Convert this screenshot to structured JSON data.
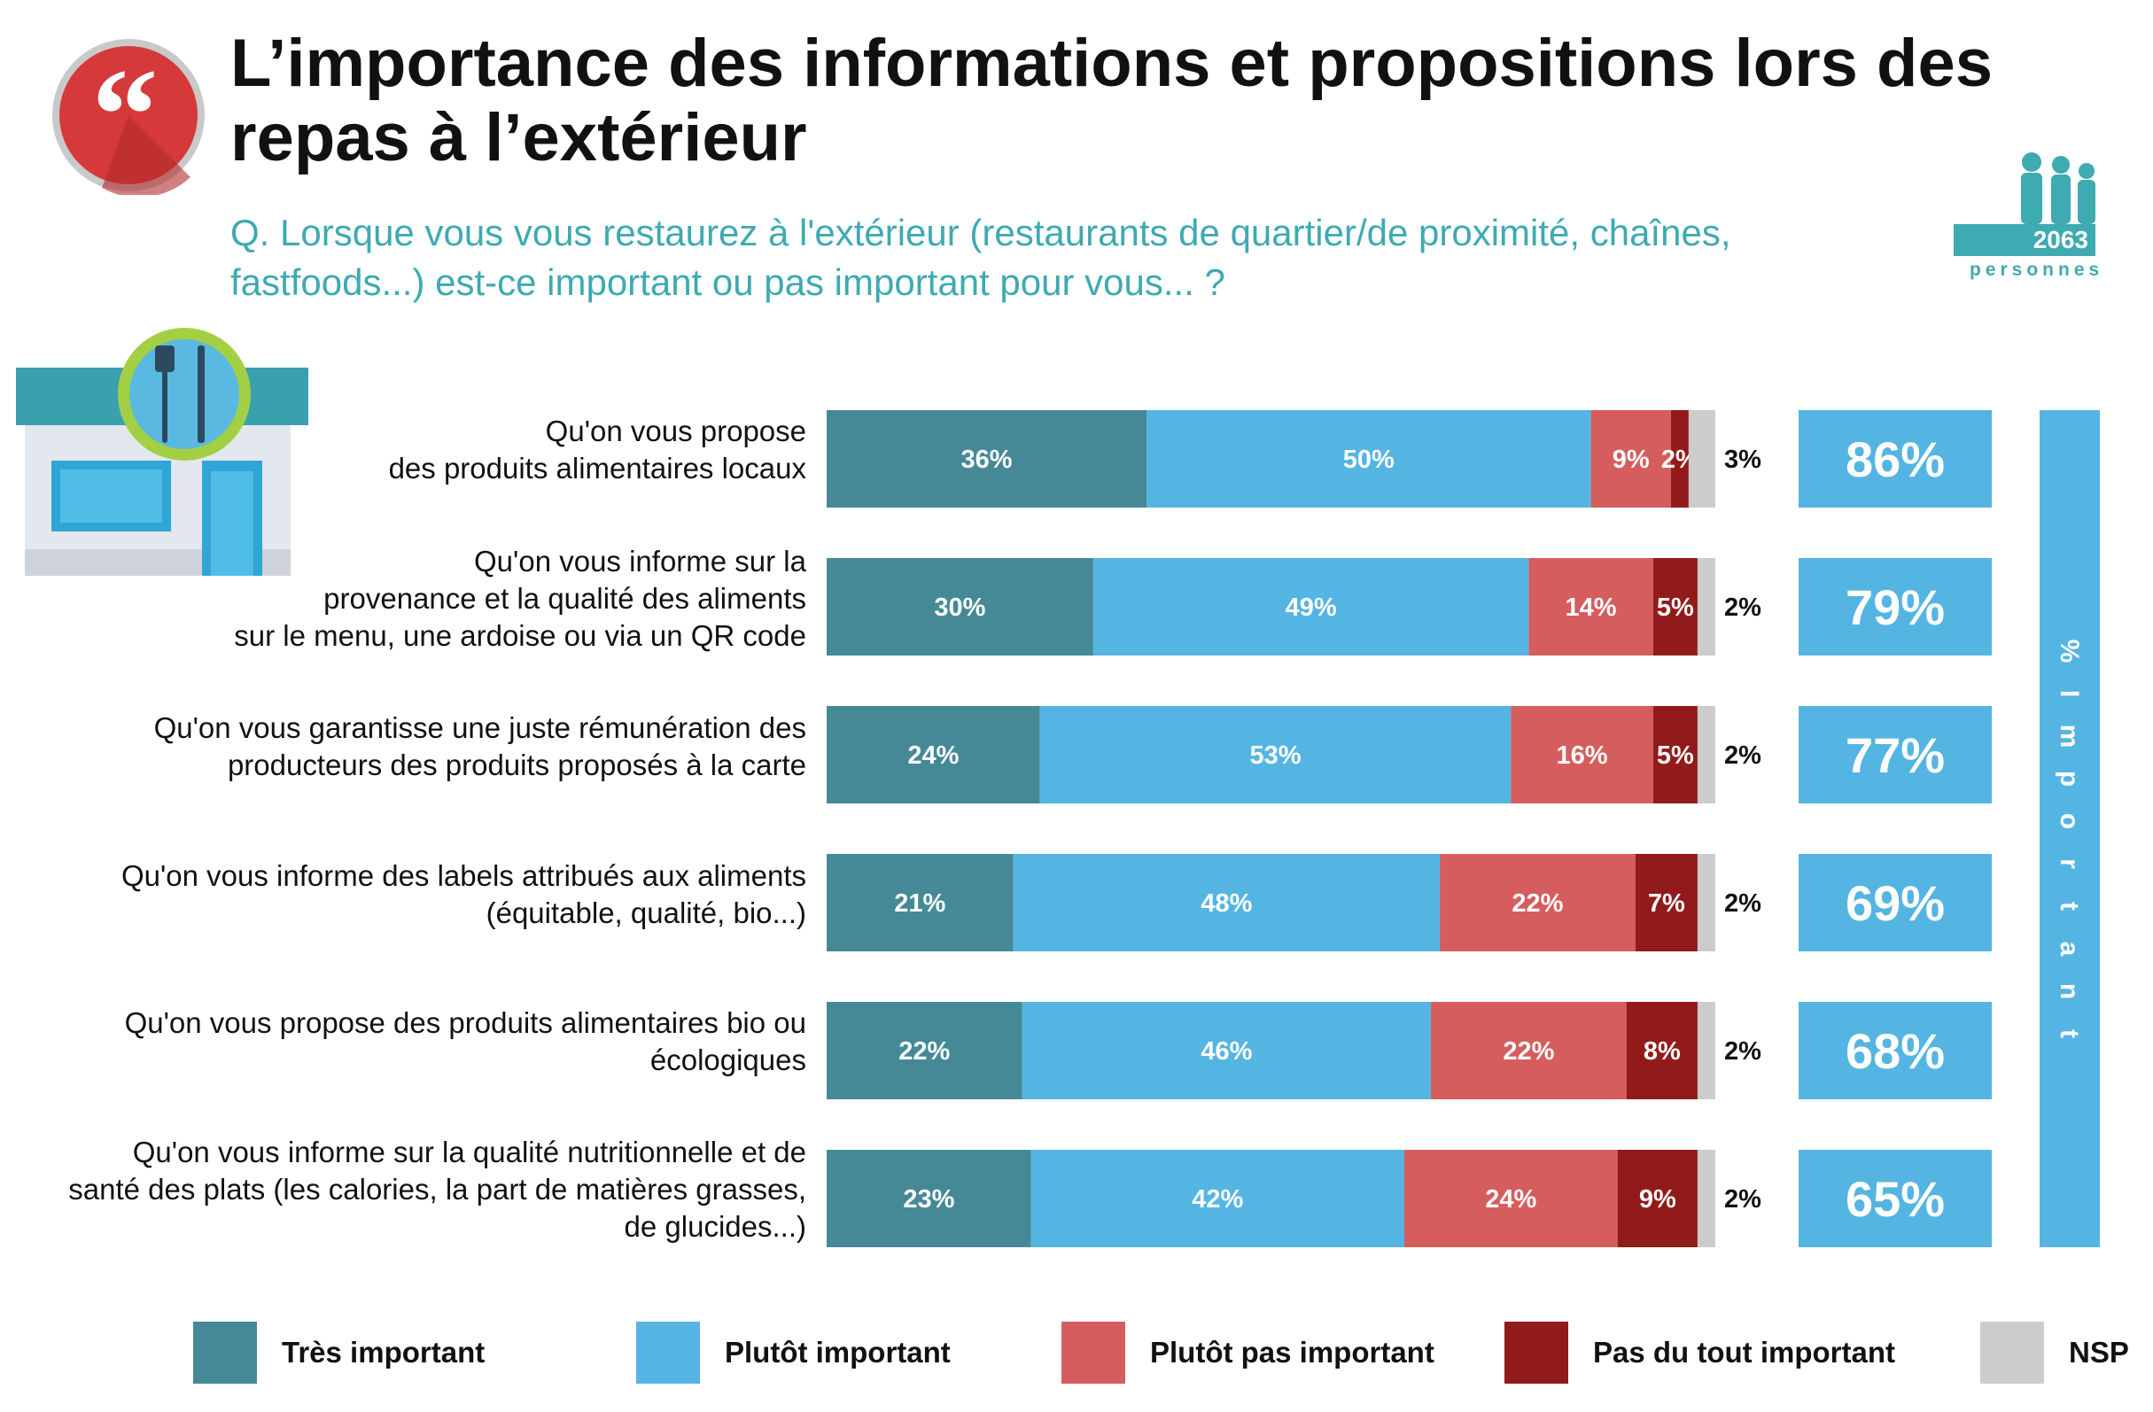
{
  "header": {
    "title_lines": [
      "L’importance des informations et propositions lors des",
      "repas à l’extérieur"
    ],
    "question_lines": [
      "Q. Lorsque vous vous restaurez à l'extérieur (restaurants de quartier/de proximité, chaînes,",
      "fastfoods...) est-ce important ou pas important pour vous... ?"
    ],
    "sample_count": "2063",
    "sample_unit": "personnes",
    "quote_glyph": "“"
  },
  "icons": {
    "quote": "quote-icon",
    "people": "people-icon",
    "restaurant": "restaurant-storefront-icon"
  },
  "colors": {
    "tres_important": "#458996",
    "plutot_important": "#55b5e2",
    "plutot_pas_important": "#d65d5d",
    "pas_du_tout_important": "#911b1b",
    "nsp": "#cccccc",
    "summary": "#55b5e2",
    "title_accent": "#3eaab1"
  },
  "chart_data": {
    "type": "bar",
    "orientation": "horizontal",
    "stacked": true,
    "unit": "%",
    "categories": [
      [
        "Qu'on vous propose",
        "des produits alimentaires locaux"
      ],
      [
        "Qu'on vous informe sur la",
        "provenance et la qualité des aliments",
        "sur le menu, une ardoise ou via un QR code"
      ],
      [
        "Qu'on vous garantisse une juste rémunération des",
        "producteurs des produits proposés à la carte"
      ],
      [
        "Qu'on vous informe des labels attribués aux aliments",
        "(équitable, qualité, bio...)"
      ],
      [
        "Qu'on vous propose des produits alimentaires bio ou",
        "écologiques"
      ],
      [
        "Qu'on vous informe sur la qualité nutritionnelle et de",
        "santé des plats (les calories, la part de matières grasses,",
        "de glucides...)"
      ]
    ],
    "series": [
      {
        "name": "Très important",
        "values": [
          36,
          30,
          24,
          21,
          22,
          23
        ]
      },
      {
        "name": "Plutôt important",
        "values": [
          50,
          49,
          53,
          48,
          46,
          42
        ]
      },
      {
        "name": "Plutôt pas important",
        "values": [
          9,
          14,
          16,
          22,
          22,
          24
        ]
      },
      {
        "name": "Pas du tout important",
        "values": [
          2,
          5,
          5,
          7,
          8,
          9
        ]
      },
      {
        "name": "NSP",
        "values": [
          3,
          2,
          2,
          2,
          2,
          2
        ]
      }
    ],
    "summary": {
      "label": "% Important",
      "values": [
        86,
        79,
        77,
        69,
        68,
        65
      ]
    },
    "legend_position": "bottom",
    "grid": false
  }
}
